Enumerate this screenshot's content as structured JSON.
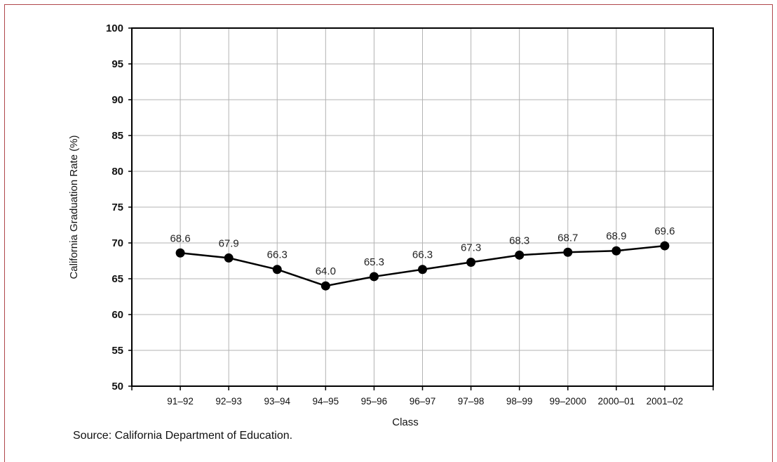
{
  "chart_data": {
    "type": "line",
    "xlabel": "Class",
    "ylabel": "California Graduation Rate (%)",
    "ylim": [
      50,
      100
    ],
    "yticks": [
      50,
      55,
      60,
      65,
      70,
      75,
      80,
      85,
      90,
      95,
      100
    ],
    "categories": [
      "91–92",
      "92–93",
      "93–94",
      "94–95",
      "95–96",
      "96–97",
      "97–98",
      "98–99",
      "99–2000",
      "2000–01",
      "2001–02"
    ],
    "series": [
      {
        "values": [
          68.6,
          67.9,
          66.3,
          64.0,
          65.3,
          66.3,
          67.3,
          68.3,
          68.7,
          68.9,
          69.6
        ]
      }
    ],
    "data_labels": [
      "68.6",
      "67.9",
      "66.3",
      "64.0",
      "65.3",
      "66.3",
      "67.3",
      "68.3",
      "68.7",
      "68.9",
      "69.6"
    ],
    "grid": true,
    "legend": "none",
    "line_color": "#000000",
    "grid_color": "#b3b3b3"
  },
  "source": "Source: California Department of Education.",
  "colors": {
    "frame": "#b0464b"
  }
}
